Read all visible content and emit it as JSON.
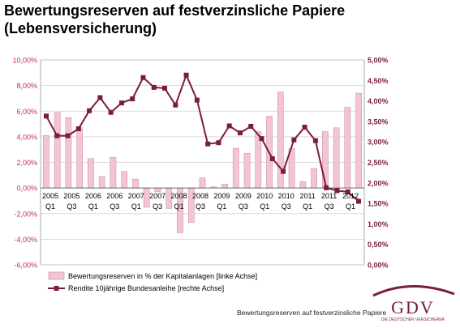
{
  "title_line1": "Bewertungsreserven auf festverzinsliche Papiere",
  "title_line2": "(Lebensversicherung)",
  "footer": "Bewertungsreserven auf festverzinsliche Papiere",
  "logo": {
    "text": "GDV",
    "subtext": "DIE DEUTSCHEN VERSICHERER"
  },
  "chart_data": {
    "type": "bar",
    "x_tick_labels_top": [
      "2005",
      "2005",
      "2006",
      "2006",
      "2007",
      "2007",
      "2008",
      "2008",
      "2009",
      "2009",
      "2010",
      "2010",
      "2011",
      "2011",
      "2012"
    ],
    "x_tick_labels_bottom": [
      "Q1",
      "Q3",
      "Q1",
      "Q3",
      "Q1",
      "Q3",
      "Q1",
      "Q3",
      "Q1",
      "Q3",
      "Q1",
      "Q3",
      "Q1",
      "Q3",
      "Q1"
    ],
    "y_left_ticks": [
      "10,00%",
      "8,00%",
      "6,00%",
      "4,00%",
      "2,00%",
      "0,00%",
      "-2,00%",
      "-4,00%",
      "-6,00%"
    ],
    "y_right_ticks": [
      "5,00%",
      "4,50%",
      "4,00%",
      "3,50%",
      "3,00%",
      "2,50%",
      "2,00%",
      "1,50%",
      "1,00%",
      "0,50%",
      "0,00%"
    ],
    "y_left_range": [
      -6,
      10
    ],
    "y_right_range": [
      0,
      5
    ],
    "series": [
      {
        "name": "Bewertungsreserven in % der Kapitalanlagen [linke Achse]",
        "kind": "bar",
        "axis": "left",
        "color": "#f2c4d4",
        "values": [
          4.1,
          5.9,
          5.5,
          4.7,
          2.3,
          0.9,
          2.4,
          1.3,
          0.7,
          -1.5,
          -0.3,
          -1.6,
          -3.5,
          -2.7,
          0.8,
          0.1,
          0.3,
          3.1,
          2.7,
          4.4,
          5.6,
          7.5,
          3.1,
          0.5,
          1.5,
          4.4,
          4.7,
          6.3,
          7.4
        ]
      },
      {
        "name": "Rendite 10jährige Bundesanleihe [rechte Achse]",
        "kind": "line",
        "axis": "right",
        "color": "#7b1c3c",
        "values": [
          3.63,
          3.15,
          3.15,
          3.32,
          3.76,
          4.08,
          3.72,
          3.95,
          4.05,
          4.57,
          4.33,
          4.31,
          3.9,
          4.63,
          4.02,
          2.95,
          2.98,
          3.39,
          3.22,
          3.38,
          3.08,
          2.59,
          2.28,
          3.05,
          3.36,
          3.03,
          1.88,
          1.81,
          1.78,
          1.55
        ]
      }
    ]
  }
}
